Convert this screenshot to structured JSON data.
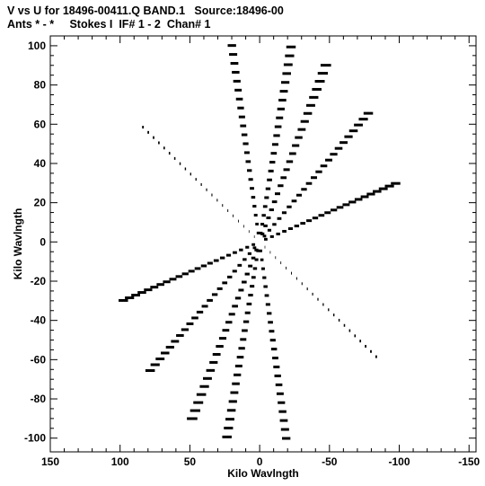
{
  "header": {
    "line1": "V vs U for 18496-00411.Q BAND.1   Source:18496-00",
    "line2": "Ants * - *     Stokes I  IF# 1 - 2  Chan# 1"
  },
  "chart_data": {
    "type": "scatter",
    "xlabel": "Kilo Wavlngth",
    "ylabel": "Kilo Wavlngth",
    "xlim": [
      150,
      -155
    ],
    "ylim": [
      -107,
      105
    ],
    "x_ticks": [
      150,
      100,
      50,
      0,
      -50,
      -100,
      -150
    ],
    "y_ticks": [
      100,
      80,
      60,
      40,
      20,
      0,
      -20,
      -40,
      -60,
      -80,
      -100
    ],
    "grid": false,
    "tracks": [
      {
        "angle_deg": 103,
        "dash_length_klambda": 4.5
      },
      {
        "angle_deg": 140,
        "dash_length_klambda": 4.5
      },
      {
        "angle_deg": 163,
        "dash_length_klambda": 4.5
      },
      {
        "angle_deg": 35,
        "dash_length_klambda": 0.8
      },
      {
        "angle_deg": 79,
        "dash_length_klambda": 4.0
      },
      {
        "angle_deg": 118,
        "dash_length_klambda": 5.0
      }
    ],
    "points_per_track": 22,
    "max_radius_klambda": 102
  }
}
